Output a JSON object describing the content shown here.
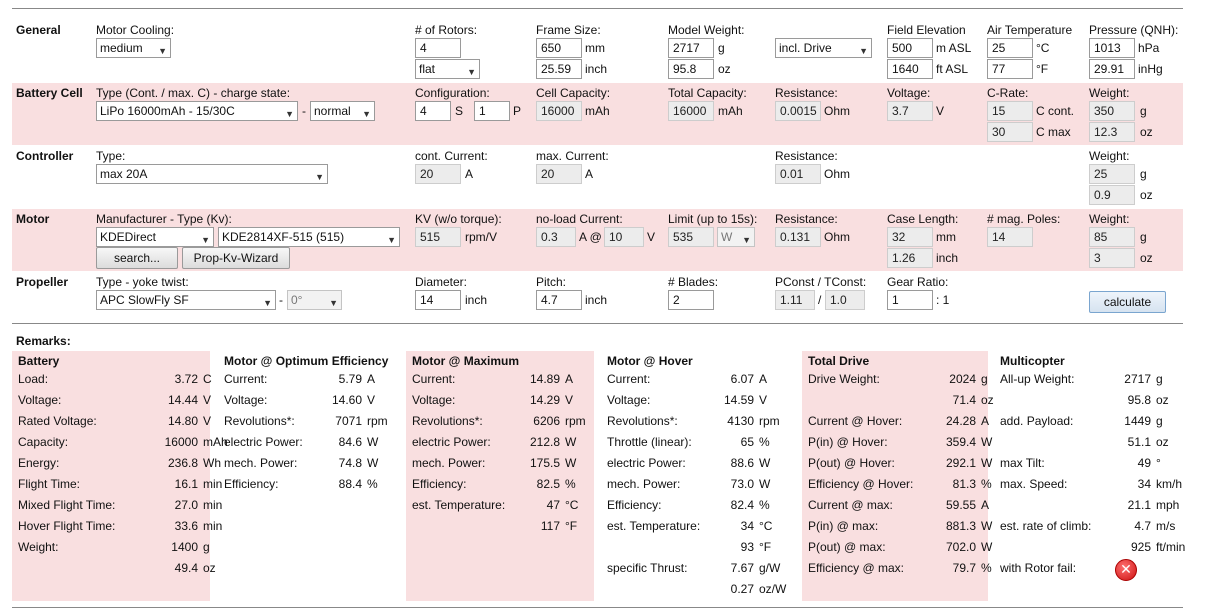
{
  "general": {
    "title": "General",
    "motor_cooling_label": "Motor Cooling:",
    "motor_cooling_value": "medium",
    "rotors_label": "# of Rotors:",
    "rotors_value": "4",
    "layout_value": "flat",
    "frame_label": "Frame Size:",
    "frame_mm": "650",
    "frame_inch": "25.59",
    "unit_mm": "mm",
    "unit_inch": "inch",
    "weight_label": "Model Weight:",
    "weight_g": "2717",
    "weight_oz": "95.8",
    "unit_g": "g",
    "unit_oz": "oz",
    "weight_mode": "incl. Drive",
    "elev_label": "Field Elevation",
    "elev_m": "500",
    "elev_ft": "1640",
    "unit_m": "m ASL",
    "unit_ft": "ft ASL",
    "temp_label": "Air Temperature",
    "temp_c": "25",
    "temp_f": "77",
    "unit_c": "°C",
    "unit_f": "°F",
    "pressure_label": "Pressure (QNH):",
    "pressure_hpa": "1013",
    "pressure_inhg": "29.91",
    "unit_hpa": "hPa",
    "unit_inhg": "inHg"
  },
  "battery": {
    "title": "Battery Cell",
    "type_label": "Type (Cont. / max. C) - charge state:",
    "type_value": "LiPo 16000mAh - 15/30C",
    "dash": "-",
    "charge_state": "normal",
    "config_label": "Configuration:",
    "s_value": "4",
    "s_unit": "S",
    "p_value": "1",
    "p_unit": "P",
    "capacity_label": "Cell Capacity:",
    "capacity_value": "16000",
    "capacity_unit": "mAh",
    "total_label": "Total Capacity:",
    "total_value": "16000",
    "total_unit": "mAh",
    "res_label": "Resistance:",
    "res_value": "0.0015",
    "res_unit": "Ohm",
    "volt_label": "Voltage:",
    "volt_value": "3.7",
    "volt_unit": "V",
    "crate_label": "C-Rate:",
    "crate_cont": "15",
    "crate_cont_unit": "C cont.",
    "crate_max": "30",
    "crate_max_unit": "C max",
    "weight_label": "Weight:",
    "weight_g": "350",
    "weight_oz": "12.3",
    "unit_g": "g",
    "unit_oz": "oz"
  },
  "controller": {
    "title": "Controller",
    "type_label": "Type:",
    "type_value": "max 20A",
    "cont_label": "cont. Current:",
    "cont_value": "20",
    "cont_unit": "A",
    "max_label": "max. Current:",
    "max_value": "20",
    "max_unit": "A",
    "res_label": "Resistance:",
    "res_value": "0.01",
    "res_unit": "Ohm",
    "weight_label": "Weight:",
    "weight_g": "25",
    "weight_oz": "0.9",
    "unit_g": "g",
    "unit_oz": "oz"
  },
  "motor": {
    "title": "Motor",
    "manufacturer_label": "Manufacturer - Type (Kv):",
    "manufacturer_value": "KDEDirect",
    "type_value": "KDE2814XF-515 (515)",
    "search_label": "search...",
    "wizard_label": "Prop-Kv-Wizard",
    "kv_label": "KV (w/o torque):",
    "kv_value": "515",
    "kv_unit": "rpm/V",
    "noload_label": "no-load Current:",
    "noload_a": "0.3",
    "noload_at": "A @",
    "noload_v": "10",
    "noload_v_unit": "V",
    "limit_label": "Limit (up to 15s):",
    "limit_value": "535",
    "limit_unit": "W",
    "res_label": "Resistance:",
    "res_value": "0.131",
    "res_unit": "Ohm",
    "case_label": "Case Length:",
    "case_mm": "32",
    "case_inch": "1.26",
    "unit_mm": "mm",
    "unit_inch": "inch",
    "poles_label": "# mag. Poles:",
    "poles_value": "14",
    "weight_label": "Weight:",
    "weight_g": "85",
    "weight_oz": "3",
    "unit_g": "g",
    "unit_oz": "oz"
  },
  "propeller": {
    "title": "Propeller",
    "type_label": "Type - yoke twist:",
    "type_value": "APC SlowFly SF",
    "dash": "-",
    "twist_value": "0°",
    "diameter_label": "Diameter:",
    "diameter_value": "14",
    "diameter_unit": "inch",
    "pitch_label": "Pitch:",
    "pitch_value": "4.7",
    "pitch_unit": "inch",
    "blades_label": "# Blades:",
    "blades_value": "2",
    "pconst_label": "PConst / TConst:",
    "pconst_value": "1.11",
    "slash": "/",
    "tconst_value": "1.0",
    "gear_label": "Gear Ratio:",
    "gear_value": "1",
    "gear_suffix": ": 1",
    "calculate_label": "calculate"
  },
  "remarks_label": "Remarks:",
  "results": {
    "battery": {
      "title": "Battery",
      "rows": [
        {
          "k": "Load:",
          "v": "3.72",
          "u": "C"
        },
        {
          "k": "Voltage:",
          "v": "14.44",
          "u": "V"
        },
        {
          "k": "Rated Voltage:",
          "v": "14.80",
          "u": "V"
        },
        {
          "k": "Capacity:",
          "v": "16000",
          "u": "mAh"
        },
        {
          "k": "Energy:",
          "v": "236.8",
          "u": "Wh"
        },
        {
          "k": "Flight Time:",
          "v": "16.1",
          "u": "min"
        },
        {
          "k": "Mixed Flight Time:",
          "v": "27.0",
          "u": "min"
        },
        {
          "k": "Hover Flight Time:",
          "v": "33.6",
          "u": "min"
        },
        {
          "k": "Weight:",
          "v": "1400",
          "u": "g"
        },
        {
          "k": "",
          "v": "49.4",
          "u": "oz"
        }
      ]
    },
    "optimum": {
      "title": "Motor @ Optimum Efficiency",
      "rows": [
        {
          "k": "Current:",
          "v": "5.79",
          "u": "A"
        },
        {
          "k": "Voltage:",
          "v": "14.60",
          "u": "V"
        },
        {
          "k": "Revolutions*:",
          "v": "7071",
          "u": "rpm"
        },
        {
          "k": "electric Power:",
          "v": "84.6",
          "u": "W"
        },
        {
          "k": "mech. Power:",
          "v": "74.8",
          "u": "W"
        },
        {
          "k": "Efficiency:",
          "v": "88.4",
          "u": "%"
        }
      ]
    },
    "maximum": {
      "title": "Motor @ Maximum",
      "rows": [
        {
          "k": "Current:",
          "v": "14.89",
          "u": "A"
        },
        {
          "k": "Voltage:",
          "v": "14.29",
          "u": "V"
        },
        {
          "k": "Revolutions*:",
          "v": "6206",
          "u": "rpm"
        },
        {
          "k": "electric Power:",
          "v": "212.8",
          "u": "W"
        },
        {
          "k": "mech. Power:",
          "v": "175.5",
          "u": "W"
        },
        {
          "k": "Efficiency:",
          "v": "82.5",
          "u": "%"
        },
        {
          "k": "est. Temperature:",
          "v": "47",
          "u": "°C"
        },
        {
          "k": "",
          "v": "117",
          "u": "°F"
        }
      ]
    },
    "hover": {
      "title": "Motor @ Hover",
      "rows": [
        {
          "k": "Current:",
          "v": "6.07",
          "u": "A"
        },
        {
          "k": "Voltage:",
          "v": "14.59",
          "u": "V"
        },
        {
          "k": "Revolutions*:",
          "v": "4130",
          "u": "rpm"
        },
        {
          "k": "Throttle (linear):",
          "v": "65",
          "u": "%"
        },
        {
          "k": "electric Power:",
          "v": "88.6",
          "u": "W"
        },
        {
          "k": "mech. Power:",
          "v": "73.0",
          "u": "W"
        },
        {
          "k": "Efficiency:",
          "v": "82.4",
          "u": "%"
        },
        {
          "k": "est. Temperature:",
          "v": "34",
          "u": "°C"
        },
        {
          "k": "",
          "v": "93",
          "u": "°F"
        },
        {
          "k": "specific Thrust:",
          "v": "7.67",
          "u": "g/W"
        },
        {
          "k": "",
          "v": "0.27",
          "u": "oz/W"
        }
      ]
    },
    "total": {
      "title": "Total Drive",
      "rows": [
        {
          "k": "Drive Weight:",
          "v": "2024",
          "u": "g"
        },
        {
          "k": "",
          "v": "71.4",
          "u": "oz"
        },
        {
          "k": "Current @ Hover:",
          "v": "24.28",
          "u": "A"
        },
        {
          "k": "P(in) @ Hover:",
          "v": "359.4",
          "u": "W"
        },
        {
          "k": "P(out) @ Hover:",
          "v": "292.1",
          "u": "W"
        },
        {
          "k": "Efficiency @ Hover:",
          "v": "81.3",
          "u": "%"
        },
        {
          "k": "Current @ max:",
          "v": "59.55",
          "u": "A"
        },
        {
          "k": "P(in) @ max:",
          "v": "881.3",
          "u": "W"
        },
        {
          "k": "P(out) @ max:",
          "v": "702.0",
          "u": "W"
        },
        {
          "k": "Efficiency @ max:",
          "v": "79.7",
          "u": "%"
        }
      ]
    },
    "multicopter": {
      "title": "Multicopter",
      "rows": [
        {
          "k": "All-up Weight:",
          "v": "2717",
          "u": "g"
        },
        {
          "k": "",
          "v": "95.8",
          "u": "oz"
        },
        {
          "k": "add. Payload:",
          "v": "1449",
          "u": "g"
        },
        {
          "k": "",
          "v": "51.1",
          "u": "oz"
        },
        {
          "k": "max Tilt:",
          "v": "49",
          "u": "°"
        },
        {
          "k": "max. Speed:",
          "v": "34",
          "u": "km/h"
        },
        {
          "k": "",
          "v": "21.1",
          "u": "mph"
        },
        {
          "k": "est. rate of climb:",
          "v": "4.7",
          "u": "m/s"
        },
        {
          "k": "",
          "v": "925",
          "u": "ft/min"
        },
        {
          "k": "with Rotor fail:",
          "v": "",
          "u": ""
        }
      ],
      "rotor_fail_icon": "error-x-icon"
    }
  }
}
